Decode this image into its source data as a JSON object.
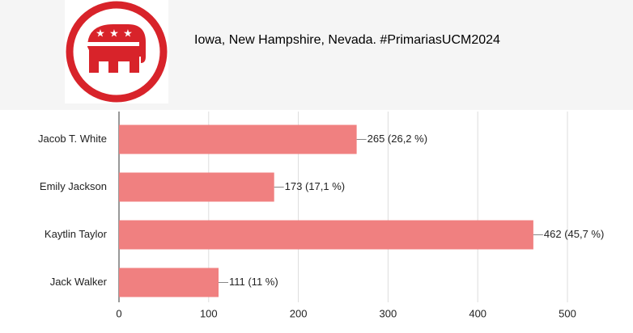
{
  "chart_data": {
    "type": "bar",
    "orientation": "horizontal",
    "title": "Iowa, New Hampshire,  Nevada. #PrimariasUCM2024",
    "categories": [
      "Jacob T. White",
      "Emily Jackson",
      "Kaytlin Taylor",
      "Jack Walker"
    ],
    "values": [
      265,
      173,
      462,
      111
    ],
    "value_labels": [
      "265 (26,2 %)",
      "173 (17,1 %)",
      "462 (45,7 %)",
      "111 (11 %)"
    ],
    "color": "#f08080",
    "xlim": [
      0,
      500
    ],
    "xticks": [
      0,
      100,
      200,
      300,
      400,
      500
    ],
    "grid": true
  }
}
